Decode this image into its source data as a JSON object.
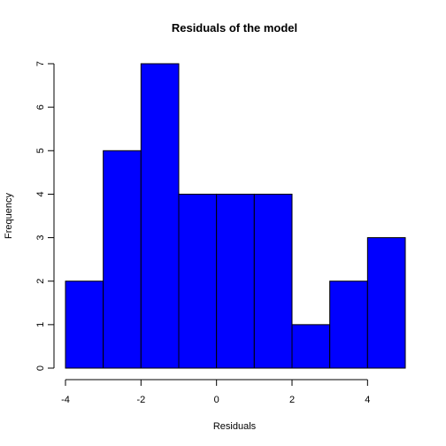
{
  "chart_data": {
    "type": "histogram",
    "title": "Residuals of the model",
    "xlabel": "Residuals",
    "ylabel": "Frequency",
    "bar_color": "#0000ff",
    "bins": [
      {
        "start": -4,
        "end": -3,
        "count": 2
      },
      {
        "start": -3,
        "end": -2,
        "count": 5
      },
      {
        "start": -2,
        "end": -1,
        "count": 7
      },
      {
        "start": -1,
        "end": 0,
        "count": 4
      },
      {
        "start": 0,
        "end": 1,
        "count": 4
      },
      {
        "start": 1,
        "end": 2,
        "count": 4
      },
      {
        "start": 2,
        "end": 3,
        "count": 1
      },
      {
        "start": 3,
        "end": 4,
        "count": 2
      },
      {
        "start": 4,
        "end": 5,
        "count": 3
      }
    ],
    "xlim": [
      -4,
      5
    ],
    "ylim": [
      0,
      7
    ],
    "x_ticks": [
      -4,
      -2,
      0,
      2,
      4
    ],
    "y_ticks": [
      0,
      1,
      2,
      3,
      4,
      5,
      6,
      7
    ],
    "x_tick_labels": [
      "-4",
      "-2",
      "0",
      "2",
      "4"
    ],
    "y_tick_labels": [
      "0",
      "1",
      "2",
      "3",
      "4",
      "5",
      "6",
      "7"
    ]
  }
}
